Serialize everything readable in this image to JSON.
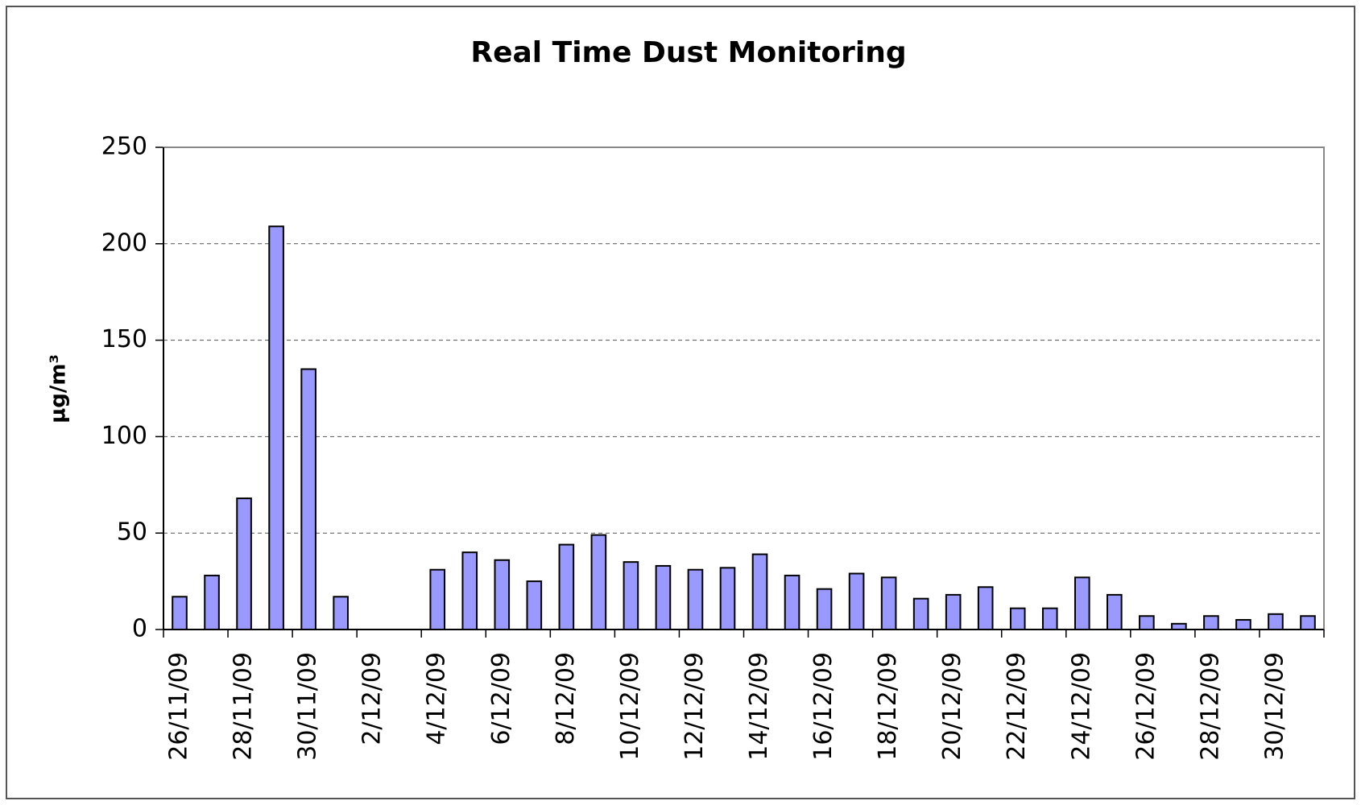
{
  "chart_data": {
    "type": "bar",
    "title": "Real Time Dust Monitoring",
    "y_label": "µg/m³",
    "categories": [
      "26/11/09",
      null,
      "28/11/09",
      null,
      "30/11/09",
      null,
      "2/12/09",
      null,
      "4/12/09",
      null,
      "6/12/09",
      null,
      "8/12/09",
      null,
      "10/12/09",
      null,
      "12/12/09",
      null,
      "14/12/09",
      null,
      "16/12/09",
      null,
      "18/12/09",
      null,
      "20/12/09",
      null,
      "22/12/09",
      null,
      "24/12/09",
      null,
      "26/12/09",
      null,
      "28/12/09",
      null,
      "30/12/09",
      null
    ],
    "values": [
      17,
      28,
      68,
      209,
      135,
      17,
      null,
      null,
      31,
      40,
      36,
      25,
      44,
      49,
      35,
      33,
      31,
      32,
      39,
      28,
      21,
      29,
      27,
      16,
      18,
      22,
      11,
      11,
      27,
      18,
      7,
      3,
      7,
      5,
      8,
      7
    ],
    "color": "#9999ff",
    "ylim": [
      0,
      250
    ],
    "yticks": [
      0,
      50,
      100,
      150,
      200,
      250
    ],
    "grid": true
  }
}
